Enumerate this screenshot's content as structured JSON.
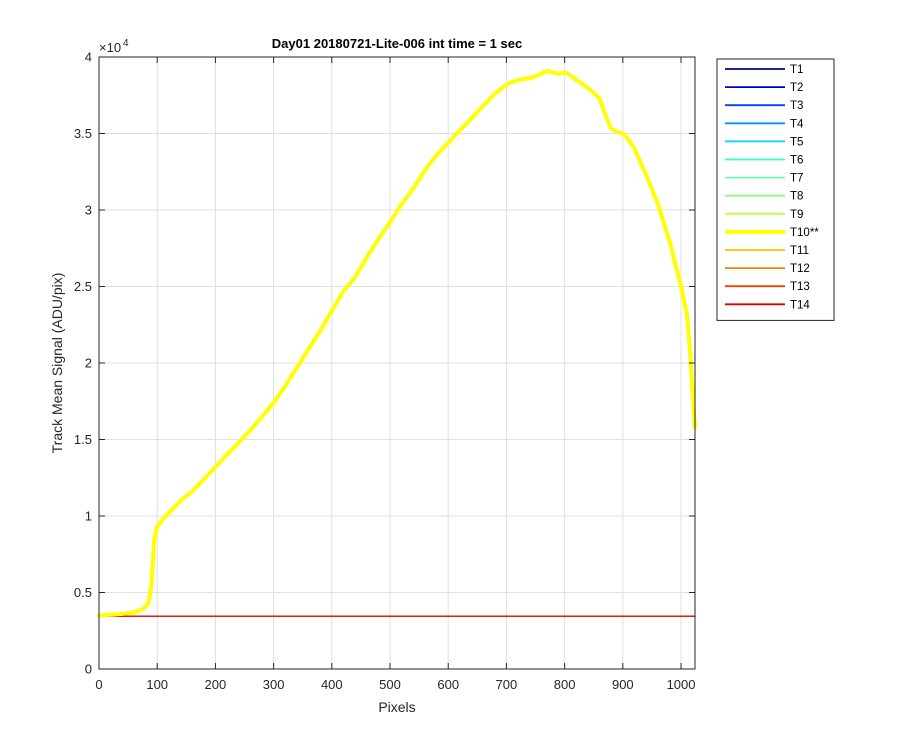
{
  "chart_data": {
    "type": "line",
    "title": "Day01 20180721-Lite-006 int time = 1 sec",
    "xlabel": "Pixels",
    "ylabel": "Track Mean Signal (ADU/pix)",
    "y_exponent_label": "×10",
    "y_exponent_power": "4",
    "xlim": [
      0,
      1024
    ],
    "ylim": [
      0,
      40000
    ],
    "xticks": [
      0,
      100,
      200,
      300,
      400,
      500,
      600,
      700,
      800,
      900,
      1000
    ],
    "yticks": [
      0,
      5000,
      10000,
      15000,
      20000,
      25000,
      30000,
      35000,
      40000
    ],
    "xtick_labels": [
      "0",
      "100",
      "200",
      "300",
      "400",
      "500",
      "600",
      "700",
      "800",
      "900",
      "1000"
    ],
    "ytick_labels": [
      "0",
      "0.5",
      "1",
      "1.5",
      "2",
      "2.5",
      "3",
      "3.5",
      "4"
    ],
    "grid": true,
    "legend_position": "outside-right",
    "series": [
      {
        "name": "T1",
        "color": "#000080",
        "x": [
          0,
          1024
        ],
        "y": [
          3450,
          3450
        ]
      },
      {
        "name": "T2",
        "color": "#0000d0",
        "x": [
          0,
          1024
        ],
        "y": [
          3450,
          3450
        ]
      },
      {
        "name": "T3",
        "color": "#0040ff",
        "x": [
          0,
          1024
        ],
        "y": [
          3450,
          3450
        ]
      },
      {
        "name": "T4",
        "color": "#0090ff",
        "x": [
          0,
          1024
        ],
        "y": [
          3450,
          3450
        ]
      },
      {
        "name": "T5",
        "color": "#00d0ff",
        "x": [
          0,
          1024
        ],
        "y": [
          3450,
          3450
        ]
      },
      {
        "name": "T6",
        "color": "#30ffd0",
        "x": [
          0,
          1024
        ],
        "y": [
          3450,
          3450
        ]
      },
      {
        "name": "T7",
        "color": "#70ffb0",
        "x": [
          0,
          1024
        ],
        "y": [
          3450,
          3450
        ]
      },
      {
        "name": "T8",
        "color": "#90ff80",
        "x": [
          0,
          1024
        ],
        "y": [
          3450,
          3450
        ]
      },
      {
        "name": "T9",
        "color": "#c0ff40",
        "x": [
          0,
          1024
        ],
        "y": [
          3450,
          3450
        ]
      },
      {
        "name": "T10**",
        "color": "#ffff00",
        "highlight": true,
        "x": [
          0,
          20,
          40,
          60,
          75,
          85,
          90,
          95,
          100,
          110,
          120,
          130,
          140,
          150,
          160,
          170,
          180,
          190,
          200,
          220,
          240,
          260,
          280,
          300,
          320,
          340,
          360,
          380,
          400,
          420,
          440,
          460,
          480,
          500,
          520,
          540,
          560,
          580,
          600,
          620,
          640,
          660,
          680,
          700,
          720,
          740,
          760,
          770,
          780,
          790,
          800,
          810,
          820,
          840,
          860,
          870,
          880,
          890,
          900,
          910,
          920,
          940,
          960,
          980,
          1000,
          1010,
          1015,
          1020,
          1024
        ],
        "y": [
          3500,
          3550,
          3600,
          3700,
          3900,
          4300,
          5500,
          8500,
          9300,
          9800,
          10200,
          10600,
          11000,
          11300,
          11600,
          12000,
          12400,
          12800,
          13200,
          14000,
          14800,
          15600,
          16500,
          17400,
          18500,
          19700,
          20900,
          22100,
          23400,
          24700,
          25600,
          26900,
          28100,
          29200,
          30400,
          31400,
          32600,
          33600,
          34400,
          35200,
          36000,
          36800,
          37600,
          38200,
          38500,
          38600,
          38900,
          39100,
          39000,
          38900,
          39000,
          38800,
          38500,
          38000,
          37300,
          36200,
          35300,
          35100,
          35000,
          34600,
          34000,
          32300,
          30400,
          28000,
          25000,
          23200,
          21000,
          18000,
          15800
        ]
      },
      {
        "name": "T11",
        "color": "#ffc000",
        "x": [
          0,
          1024
        ],
        "y": [
          3450,
          3450
        ]
      },
      {
        "name": "T12",
        "color": "#ff8000",
        "x": [
          0,
          1024
        ],
        "y": [
          3450,
          3450
        ]
      },
      {
        "name": "T13",
        "color": "#ff4000",
        "x": [
          0,
          1024
        ],
        "y": [
          3450,
          3450
        ]
      },
      {
        "name": "T14",
        "color": "#e00000",
        "x": [
          0,
          1024
        ],
        "y": [
          3450,
          3450
        ]
      }
    ]
  }
}
